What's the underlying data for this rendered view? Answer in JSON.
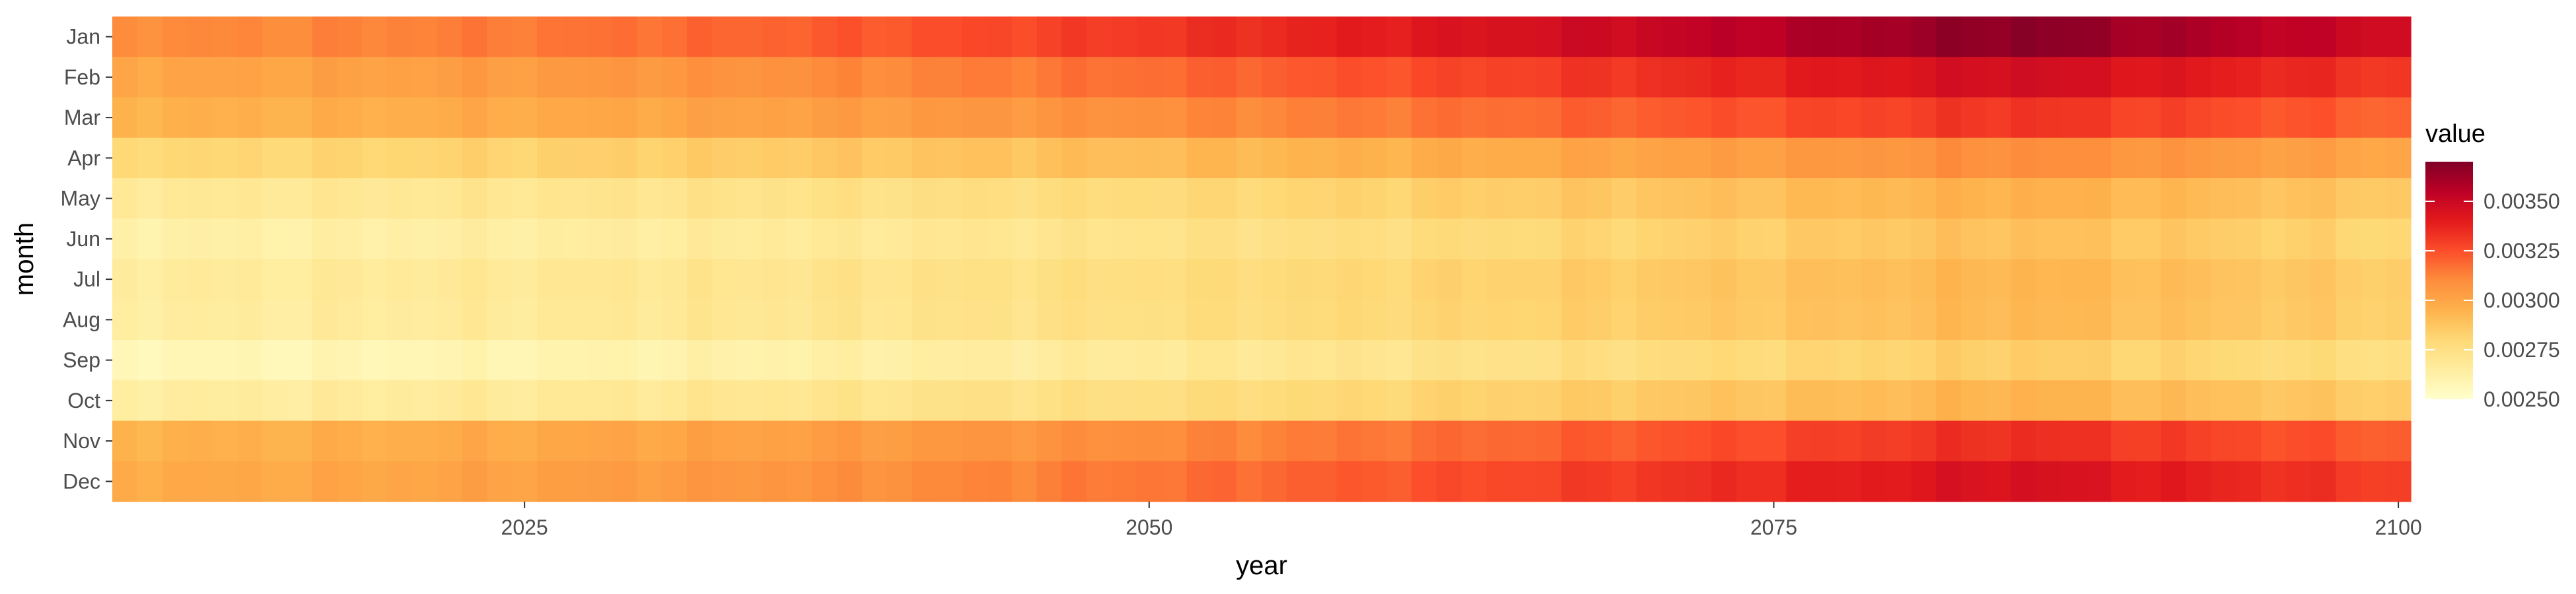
{
  "chart_data": {
    "type": "heatmap",
    "title": "",
    "xlabel": "year",
    "ylabel": "month",
    "x_range": [
      2009,
      2100
    ],
    "x_ticks": [
      "2025",
      "2050",
      "2075",
      "2100"
    ],
    "y_categories": [
      "Jan",
      "Feb",
      "Mar",
      "Apr",
      "May",
      "Jun",
      "Jul",
      "Aug",
      "Sep",
      "Oct",
      "Nov",
      "Dec"
    ],
    "legend": {
      "title": "value",
      "position": "right",
      "range": [
        0.0025,
        0.0037
      ],
      "ticks": [
        "0.00250",
        "0.00275",
        "0.00300",
        "0.00325",
        "0.00350"
      ],
      "colors": [
        "#ffffcc",
        "#ffeda0",
        "#fed976",
        "#feb24c",
        "#fd8d3c",
        "#fc4e2a",
        "#e31a1c",
        "#bd0026",
        "#800026"
      ]
    },
    "month_base_start": {
      "Jan": 0.0031,
      "Feb": 0.003,
      "Mar": 0.00295,
      "Apr": 0.0028,
      "May": 0.00268,
      "Jun": 0.00262,
      "Jul": 0.00266,
      "Aug": 0.00265,
      "Sep": 0.00257,
      "Oct": 0.00265,
      "Nov": 0.00295,
      "Dec": 0.00298
    },
    "month_increase_by_2085": {
      "Jan": 0.00058,
      "Feb": 0.00048,
      "Mar": 0.00038,
      "Apr": 0.0003,
      "May": 0.00028,
      "Jun": 0.00028,
      "Jul": 0.00028,
      "Aug": 0.00028,
      "Sep": 0.00028,
      "Oct": 0.0003,
      "Nov": 0.0004,
      "Dec": 0.00048
    },
    "peak_year": 2085,
    "decline_after_peak_to_2100": 0.35,
    "grid": false
  }
}
